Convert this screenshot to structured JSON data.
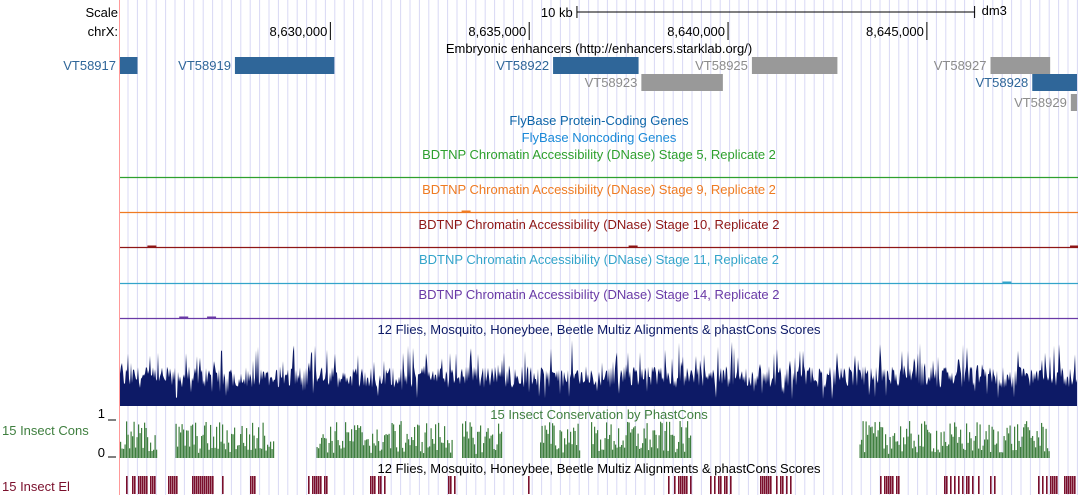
{
  "ruler": {
    "scale_label": "Scale",
    "scale_value": "10 kb",
    "assembly": "dm3",
    "chrom_label": "chrX:",
    "positions": [
      8630000,
      8635000,
      8640000,
      8645000
    ],
    "position_labels": [
      "8,630,000",
      "8,635,000",
      "8,640,000",
      "8,645,000"
    ],
    "view_start": 8624710,
    "view_end": 8648800,
    "scalebar_start": 8636200,
    "scalebar_end": 8646200
  },
  "tracks": {
    "enhancers": {
      "title": "Embryonic enhancers (http://enhancers.starklab.org/)",
      "blue_color": "#2f6699",
      "gray_color": "#999999",
      "label_blue_color": "#2f6699",
      "label_gray_color": "#8c8c8c",
      "items": [
        {
          "name": "VT58917",
          "start": 8624710,
          "end": 8625150,
          "row": 0,
          "color": "blue"
        },
        {
          "name": "VT58919",
          "start": 8627600,
          "end": 8630100,
          "row": 0,
          "color": "blue"
        },
        {
          "name": "VT58922",
          "start": 8635600,
          "end": 8637750,
          "row": 0,
          "color": "blue"
        },
        {
          "name": "VT58923",
          "start": 8637820,
          "end": 8639870,
          "row": 1,
          "color": "gray"
        },
        {
          "name": "VT58925",
          "start": 8640600,
          "end": 8642750,
          "row": 0,
          "color": "gray"
        },
        {
          "name": "VT58927",
          "start": 8646600,
          "end": 8648100,
          "row": 0,
          "color": "gray"
        },
        {
          "name": "VT58928",
          "start": 8647650,
          "end": 8648800,
          "row": 1,
          "color": "blue"
        },
        {
          "name": "VT58929",
          "start": 8648620,
          "end": 8648800,
          "row": 2,
          "color": "gray"
        }
      ]
    },
    "flybase_coding": {
      "title": "FlyBase Protein-Coding Genes",
      "color": "#0c64a8"
    },
    "flybase_noncoding": {
      "title": "FlyBase Noncoding Genes",
      "color": "#1b8ad8"
    },
    "dnase": [
      {
        "title": "BDTNP Chromatin Accessibility (DNase) Stage 5, Replicate 2",
        "color": "#2ea02e",
        "bumps": []
      },
      {
        "title": "BDTNP Chromatin Accessibility (DNase) Stage 9, Replicate 2",
        "color": "#ef7b22",
        "bumps": [
          8633400
        ]
      },
      {
        "title": "BDTNP Chromatin Accessibility (DNase) Stage 10, Replicate 2",
        "color": "#8e1616",
        "bumps": [
          8625500,
          8637600,
          8648700
        ]
      },
      {
        "title": "BDTNP Chromatin Accessibility (DNase) Stage 11, Replicate 2",
        "color": "#33a4ca",
        "bumps": [
          8647000
        ]
      },
      {
        "title": "BDTNP Chromatin Accessibility (DNase) Stage 14, Replicate 2",
        "color": "#6a3aa6",
        "bumps": [
          8626300,
          8627000
        ]
      }
    ],
    "multiz": {
      "title": "12 Flies, Mosquito, Honeybee, Beetle Multiz Alignments & phastCons Scores",
      "color": "#0d1a66"
    },
    "phastcons": {
      "title": "15 Insect Conservation by PhastCons",
      "side_label": "15 Insect Cons",
      "y_max": "1",
      "y_min": "0",
      "color": "#3f7f3f"
    },
    "elements": {
      "title": "12 Flies, Mosquito, Honeybee, Beetle Multiz Alignments & phastCons Scores",
      "side_label": "15 Insect El",
      "color": "#7a0f2c"
    }
  },
  "colors": {
    "guide_line": "#d8d8f4",
    "left_border": "#ff9999"
  }
}
